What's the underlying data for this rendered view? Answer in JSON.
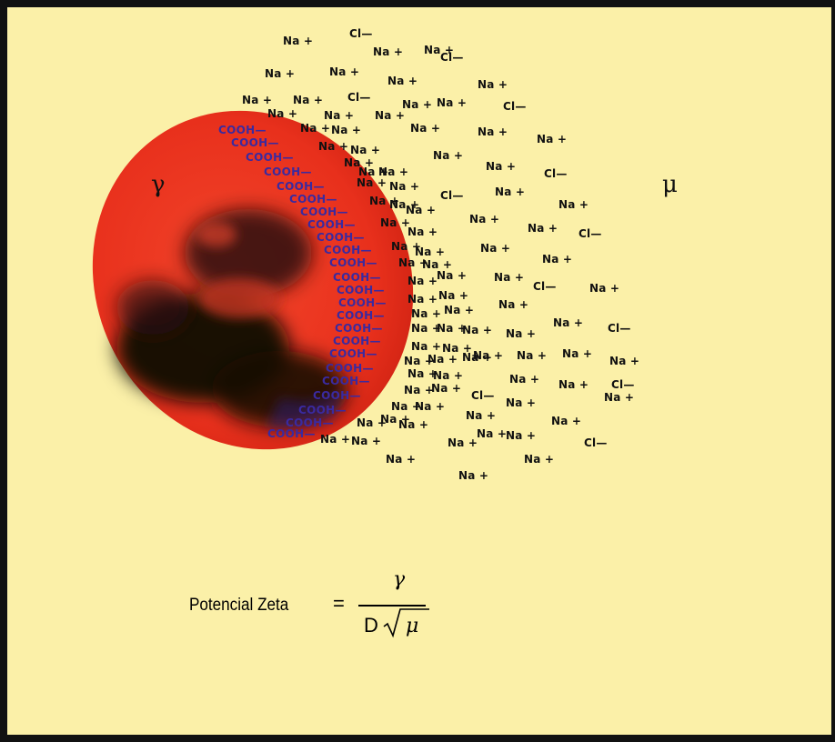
{
  "colors": {
    "background": "#fbf0a8",
    "cell": "#e8301c",
    "cell_dark": "#1a0d0a",
    "cooh": "#3a2aa0",
    "ion": "#111111"
  },
  "symbols": {
    "gamma": "γ",
    "mu": "μ"
  },
  "formula": {
    "label": "Potencial Zeta",
    "equals": "=",
    "numerator": "γ",
    "denominator_prefix": "D",
    "denominator_root": "μ"
  },
  "cooh_label": "COOH—",
  "na_label": "Na +",
  "cl_label": "Cl—"
}
